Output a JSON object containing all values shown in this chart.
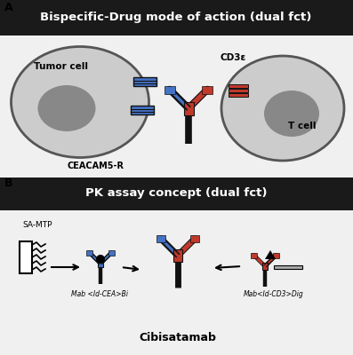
{
  "title_A": "Bispecific-Drug mode of action (dual fct)",
  "title_B": "PK assay concept (dual fct)",
  "label_cibisatamab": "Cibisatamab",
  "label_tumor_cell": "Tumor cell",
  "label_T_cell": "T cell",
  "label_CEACAM5": "CEACAM5-R",
  "label_CD3e": "CD3ε",
  "label_SA_MTP": "SA-MTP",
  "label_Mab_CEA": "Mab <Id-CEA>Bi",
  "label_Mab_CD3": "Mab<Id-CD3>Dig",
  "bg_header": "#1a1a1a",
  "bg_panel": "#f0f0f0",
  "color_blue": "#4472C4",
  "color_red": "#C0392B",
  "color_black": "#111111",
  "color_gray_cell": "#cccccc",
  "color_gray_nucleus": "#888888",
  "color_white": "#ffffff"
}
